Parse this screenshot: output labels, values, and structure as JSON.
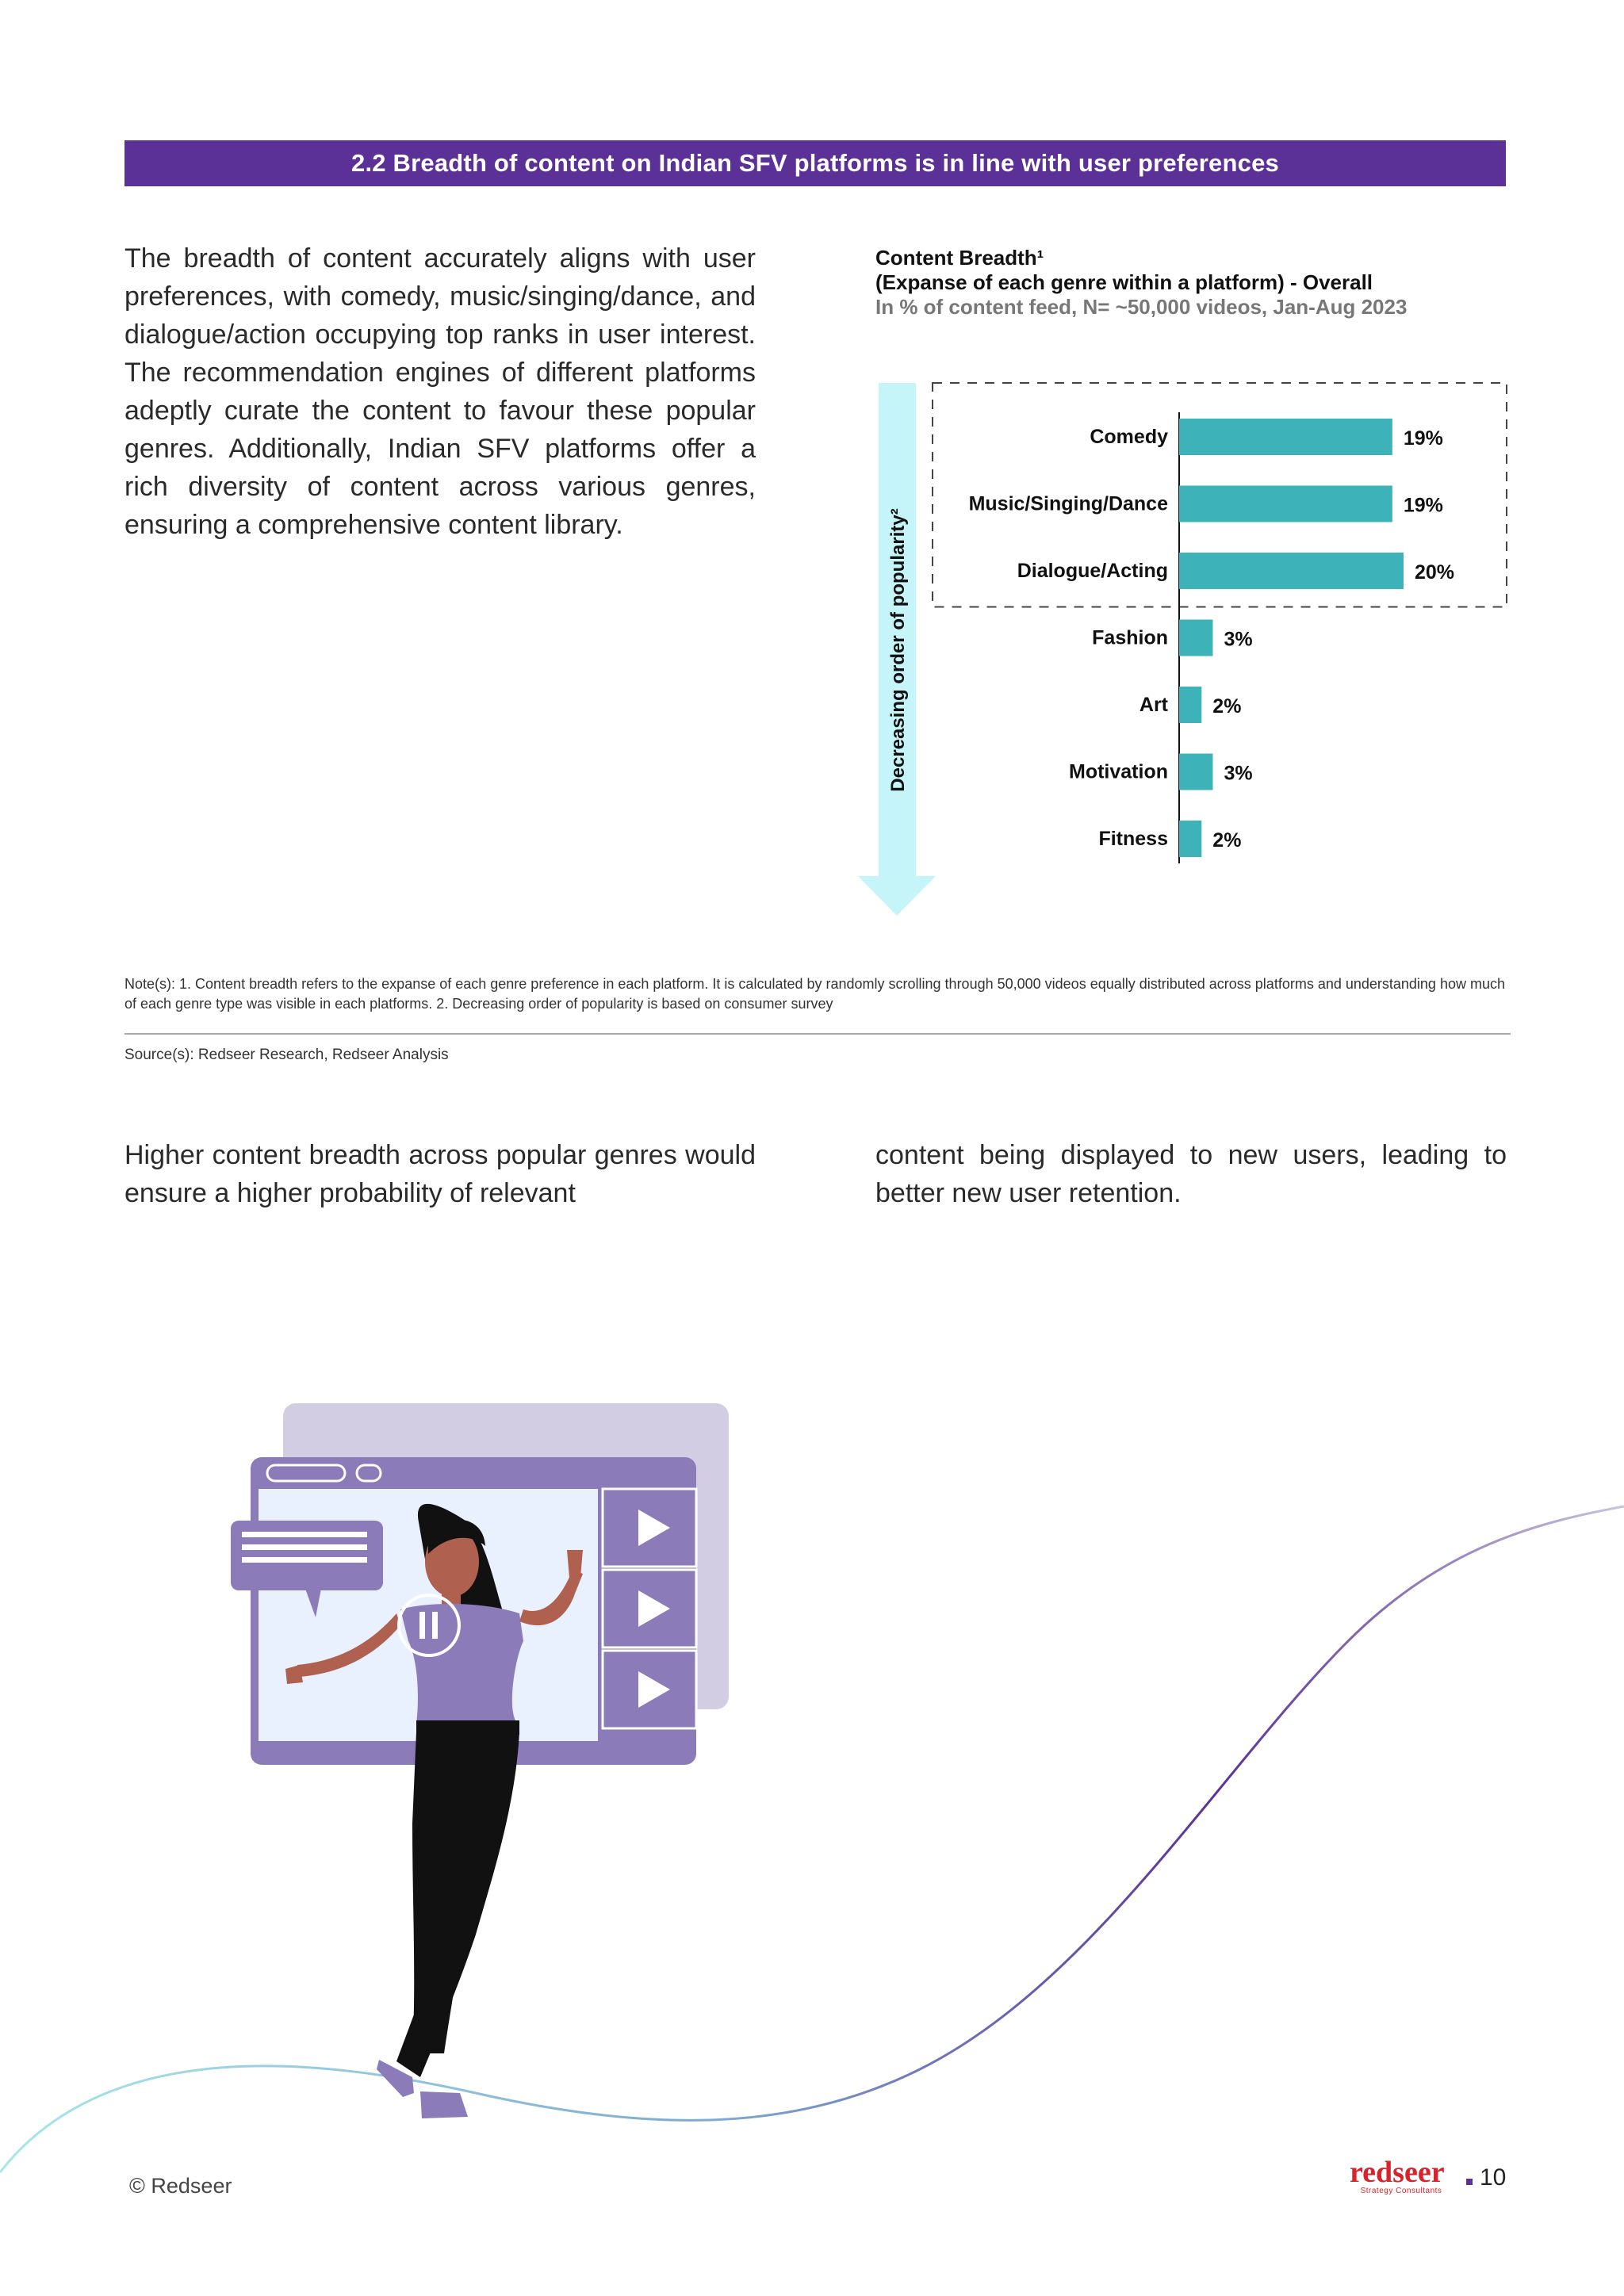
{
  "section": {
    "banner": "2.2 Breadth of content on Indian SFV platforms is in line with user preferences"
  },
  "intro_text": "The breadth of content accurately aligns with user preferences, with comedy, music/singing/dance, and dialogue/action occupying top ranks in user interest. The recommendation engines of different platforms adeptly curate the content to favour these popular genres. Additionally, Indian SFV platforms offer a rich diversity of content across various genres, ensuring a comprehensive content library.",
  "chart_data": {
    "type": "bar",
    "orientation": "horizontal",
    "title": "Content Breadth¹",
    "subtitle": "(Expanse of each genre within a platform) - Overall",
    "note": "In % of content feed, N= ~50,000 videos, Jan-Aug 2023",
    "ylabel": "Decreasing order of popularity²",
    "categories": [
      "Comedy",
      "Music/Singing/Dance",
      "Dialogue/Acting",
      "Fashion",
      "Art",
      "Motivation",
      "Fitness"
    ],
    "values": [
      19,
      19,
      20,
      3,
      2,
      3,
      2
    ],
    "value_labels": [
      "19%",
      "19%",
      "20%",
      "3%",
      "2%",
      "3%",
      "2%"
    ],
    "xlim": [
      0,
      20
    ],
    "highlighted_categories": [
      "Comedy",
      "Music/Singing/Dance",
      "Dialogue/Acting"
    ],
    "bar_color": "#3db3b9",
    "arrow_color": "#c5f5f8",
    "grid": false
  },
  "notes": "Note(s): 1. Content breadth refers to the  expanse of each genre preference in each platform. It is calculated by randomly scrolling through 50,000 videos equally distributed across platforms and understanding how much of each genre type was visible in each platforms. 2. Decreasing order of popularity is based on consumer survey",
  "source": "Source(s): Redseer Research, Redseer Analysis",
  "body_left": "Higher content breadth across popular genres would ensure a higher probability of relevant",
  "body_right": "content being displayed to new users, leading to better new user retention.",
  "footer": {
    "copyright": "© Redseer",
    "logo_word": "redseer",
    "logo_tag": "Strategy Consultants",
    "page_number": "10"
  },
  "colors": {
    "banner": "#5b3197",
    "accent_purple": "#8b7bb8",
    "bar_teal": "#3db3b9"
  }
}
